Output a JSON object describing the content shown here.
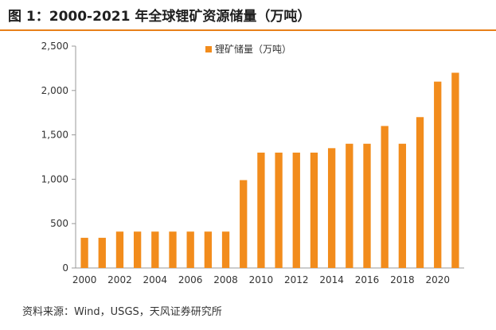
{
  "header": {
    "title": "图 1：2000-2021 年全球锂矿资源储量（万吨）",
    "rule_color": "#e8801a"
  },
  "source": "资料来源：Wind，USGS，天风证券研究所",
  "chart_data": {
    "type": "bar",
    "title": "图 1：2000-2021 年全球锂矿资源储量（万吨）",
    "xlabel": "",
    "ylabel": "",
    "ylim": [
      0,
      2500
    ],
    "yticks": [
      "0",
      "500",
      "1,000",
      "1,500",
      "2,000",
      "2,500"
    ],
    "ytick_values": [
      0,
      500,
      1000,
      1500,
      2000,
      2500
    ],
    "categories": [
      "2000",
      "2001",
      "2002",
      "2003",
      "2004",
      "2005",
      "2006",
      "2007",
      "2008",
      "2009",
      "2010",
      "2011",
      "2012",
      "2013",
      "2014",
      "2015",
      "2016",
      "2017",
      "2018",
      "2019",
      "2020",
      "2021"
    ],
    "xtick_labels": [
      "2000",
      "2002",
      "2004",
      "2006",
      "2008",
      "2010",
      "2012",
      "2014",
      "2016",
      "2018",
      "2020"
    ],
    "series": [
      {
        "name": "锂矿储量（万吨）",
        "color": "#f28c1c",
        "values": [
          340,
          340,
          410,
          410,
          410,
          410,
          410,
          410,
          410,
          990,
          1300,
          1300,
          1300,
          1300,
          1350,
          1400,
          1400,
          1600,
          1400,
          1700,
          2100,
          2200
        ]
      }
    ],
    "legend": {
      "position": "top-center"
    },
    "grid": false
  }
}
